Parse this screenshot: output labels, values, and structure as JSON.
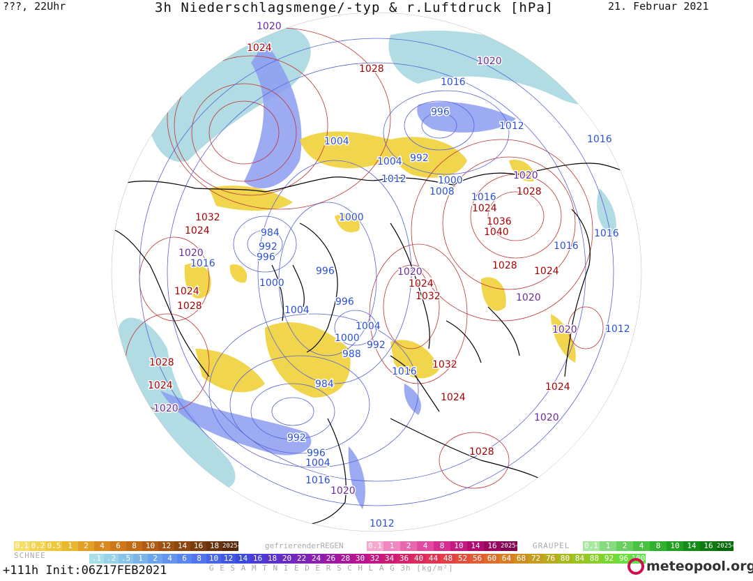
{
  "header": {
    "left": "???, 22Uhr",
    "title": "3h Niederschlagsmenge/-typ & r.Luftdruck [hPa]",
    "right": "21. Februar 2021"
  },
  "footer": {
    "init": "+111h Init:06Z17FEB2021",
    "logo": "meteopool.org",
    "schnee_label": "SCHNEE",
    "regen_label": "gefrierenderREGEN",
    "graupel_label": "GRAUPEL",
    "gesamt_label": "G E S A M T N I E D E R S C H L A G   3h   [kg/m²]"
  },
  "scales": {
    "schnee": [
      "0.1",
      "0.2",
      "0.5",
      "1",
      "2",
      "4",
      "6",
      "8",
      "10",
      "12",
      "14",
      "16",
      "18",
      "2025+"
    ],
    "regen": [
      "0.1",
      "1",
      "2",
      "4",
      "8",
      "10",
      "14",
      "16",
      "2025+"
    ],
    "graupel": [
      "0.1",
      "1",
      "2",
      "4",
      "8",
      "10",
      "14",
      "16",
      "2025+"
    ],
    "gesamt": [
      ".1",
      ".2",
      ".5",
      "1",
      "2",
      "4",
      "6",
      "8",
      "10",
      "12",
      "14",
      "16",
      "18",
      "20",
      "22",
      "24",
      "26",
      "28",
      "30",
      "32",
      "34",
      "36",
      "40",
      "44",
      "48",
      "52",
      "56",
      "60",
      "64",
      "68",
      "72",
      "76",
      "80",
      "84",
      "88",
      "92",
      "96",
      "100"
    ]
  },
  "colors": {
    "high": "#aa0000",
    "low": "#2a4fd8",
    "mid": "#6a2aa0",
    "snow": "#e8c820",
    "rain": "#9aa8f0"
  },
  "isobar_labels": [
    {
      "t": "1020",
      "c": "mid"
    },
    {
      "t": "1024",
      "c": "high"
    },
    {
      "t": "1028",
      "c": "high"
    },
    {
      "t": "1020",
      "c": "mid"
    },
    {
      "t": "1016",
      "c": "low"
    },
    {
      "t": "996",
      "c": "low"
    },
    {
      "t": "1012",
      "c": "low"
    },
    {
      "t": "1016",
      "c": "low"
    },
    {
      "t": "1004",
      "c": "low"
    },
    {
      "t": "1004",
      "c": "low"
    },
    {
      "t": "992",
      "c": "low"
    },
    {
      "t": "1012",
      "c": "low"
    },
    {
      "t": "1000",
      "c": "low"
    },
    {
      "t": "1008",
      "c": "low"
    },
    {
      "t": "1020",
      "c": "mid"
    },
    {
      "t": "1028",
      "c": "high"
    },
    {
      "t": "1016",
      "c": "low"
    },
    {
      "t": "1024",
      "c": "high"
    },
    {
      "t": "1032",
      "c": "high"
    },
    {
      "t": "1024",
      "c": "high"
    },
    {
      "t": "1000",
      "c": "low"
    },
    {
      "t": "1036",
      "c": "high"
    },
    {
      "t": "1040",
      "c": "high"
    },
    {
      "t": "984",
      "c": "low"
    },
    {
      "t": "992",
      "c": "low"
    },
    {
      "t": "996",
      "c": "low"
    },
    {
      "t": "1016",
      "c": "low"
    },
    {
      "t": "1016",
      "c": "low"
    },
    {
      "t": "1020",
      "c": "mid"
    },
    {
      "t": "1016",
      "c": "low"
    },
    {
      "t": "1028",
      "c": "high"
    },
    {
      "t": "1024",
      "c": "high"
    },
    {
      "t": "1020",
      "c": "mid"
    },
    {
      "t": "1024",
      "c": "high"
    },
    {
      "t": "1000",
      "c": "low"
    },
    {
      "t": "996",
      "c": "low"
    },
    {
      "t": "1028",
      "c": "high"
    },
    {
      "t": "1032",
      "c": "high"
    },
    {
      "t": "1020",
      "c": "mid"
    },
    {
      "t": "1024",
      "c": "high"
    },
    {
      "t": "1004",
      "c": "low"
    },
    {
      "t": "996",
      "c": "low"
    },
    {
      "t": "1020",
      "c": "mid"
    },
    {
      "t": "1012",
      "c": "low"
    },
    {
      "t": "1004",
      "c": "low"
    },
    {
      "t": "1000",
      "c": "low"
    },
    {
      "t": "992",
      "c": "low"
    },
    {
      "t": "988",
      "c": "low"
    },
    {
      "t": "1028",
      "c": "high"
    },
    {
      "t": "1016",
      "c": "low"
    },
    {
      "t": "1032",
      "c": "high"
    },
    {
      "t": "984",
      "c": "low"
    },
    {
      "t": "1024",
      "c": "high"
    },
    {
      "t": "1024",
      "c": "high"
    },
    {
      "t": "1020",
      "c": "mid"
    },
    {
      "t": "1024",
      "c": "high"
    },
    {
      "t": "1020",
      "c": "mid"
    },
    {
      "t": "992",
      "c": "low"
    },
    {
      "t": "996",
      "c": "low"
    },
    {
      "t": "1004",
      "c": "low"
    },
    {
      "t": "1016",
      "c": "low"
    },
    {
      "t": "1028",
      "c": "high"
    },
    {
      "t": "1020",
      "c": "mid"
    },
    {
      "t": "1012",
      "c": "low"
    }
  ]
}
